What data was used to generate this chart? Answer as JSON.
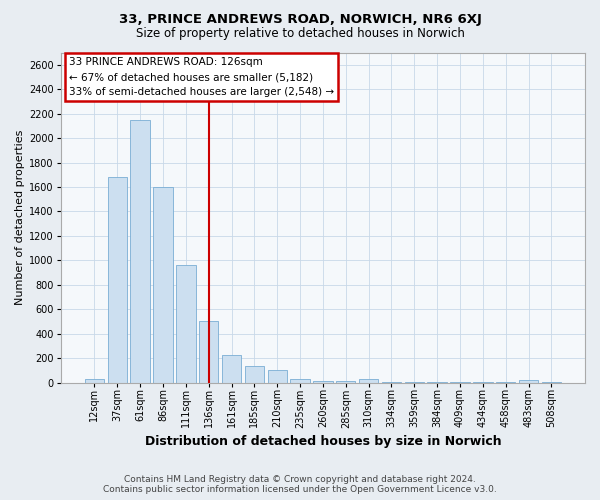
{
  "title1": "33, PRINCE ANDREWS ROAD, NORWICH, NR6 6XJ",
  "title2": "Size of property relative to detached houses in Norwich",
  "xlabel": "Distribution of detached houses by size in Norwich",
  "ylabel": "Number of detached properties",
  "bar_labels": [
    "12sqm",
    "37sqm",
    "61sqm",
    "86sqm",
    "111sqm",
    "136sqm",
    "161sqm",
    "185sqm",
    "210sqm",
    "235sqm",
    "260sqm",
    "285sqm",
    "310sqm",
    "334sqm",
    "359sqm",
    "384sqm",
    "409sqm",
    "434sqm",
    "458sqm",
    "483sqm",
    "508sqm"
  ],
  "bar_values": [
    30,
    1680,
    2150,
    1600,
    960,
    500,
    230,
    140,
    100,
    30,
    15,
    10,
    30,
    8,
    5,
    5,
    5,
    5,
    5,
    20,
    5
  ],
  "bar_color": "#ccdff0",
  "bar_edge_color": "#7aadd4",
  "vline_x": 5,
  "vline_color": "#cc0000",
  "annotation_title": "33 PRINCE ANDREWS ROAD: 126sqm",
  "annotation_line1": "← 67% of detached houses are smaller (5,182)",
  "annotation_line2": "33% of semi-detached houses are larger (2,548) →",
  "annotation_box_facecolor": "#ffffff",
  "annotation_box_edgecolor": "#cc0000",
  "ylim": [
    0,
    2700
  ],
  "yticks": [
    0,
    200,
    400,
    600,
    800,
    1000,
    1200,
    1400,
    1600,
    1800,
    2000,
    2200,
    2400,
    2600
  ],
  "footnote1": "Contains HM Land Registry data © Crown copyright and database right 2024.",
  "footnote2": "Contains public sector information licensed under the Open Government Licence v3.0.",
  "fig_facecolor": "#e8edf2",
  "ax_facecolor": "#f5f8fb",
  "title1_fontsize": 9.5,
  "title2_fontsize": 8.5,
  "xlabel_fontsize": 9.0,
  "ylabel_fontsize": 8.0,
  "tick_fontsize": 7.0,
  "annot_fontsize": 7.5,
  "footnote_fontsize": 6.5
}
